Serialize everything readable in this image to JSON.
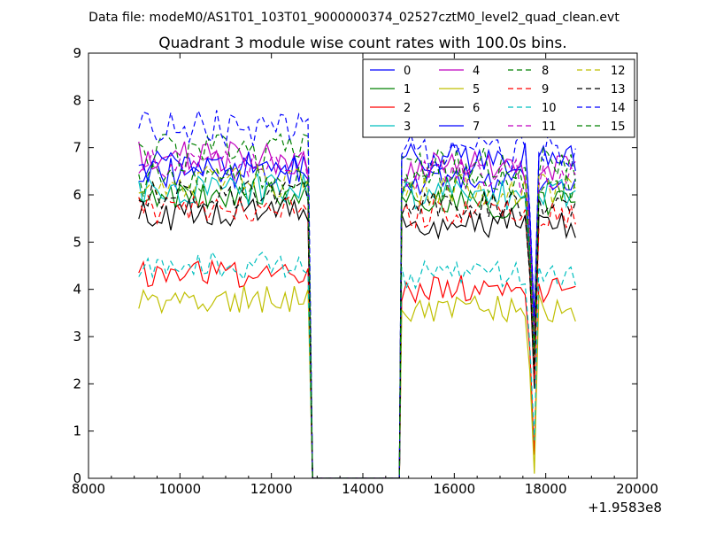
{
  "figure": {
    "suptitle": "Data file: modeM0/AS1T01_103T01_9000000374_02527cztM0_level2_quad_clean.evt"
  },
  "chart_data": {
    "type": "line",
    "title": "Quadrant 3 module wise count rates with 100.0s bins.",
    "xlabel": "",
    "ylabel": "",
    "xlim": [
      8000,
      20000
    ],
    "ylim": [
      0,
      9
    ],
    "x_offset_label": "+1.9583e8",
    "xticks": [
      "8000",
      "10000",
      "12000",
      "14000",
      "16000",
      "18000",
      "20000"
    ],
    "yticks": [
      "0",
      "1",
      "2",
      "3",
      "4",
      "5",
      "6",
      "7",
      "8",
      "9"
    ],
    "grid": false,
    "legend_position": "top-right",
    "legend_columns": 4,
    "segments": [
      {
        "x_start": 9100,
        "x_end": 12800,
        "step": 100
      },
      {
        "x_start": 14850,
        "x_end": 18700,
        "step": 100
      }
    ],
    "gap": {
      "x_start": 12900,
      "x_end": 14800,
      "value": 0
    },
    "series": [
      {
        "name": "0",
        "color": "#0000ff",
        "dash": "solid",
        "mean1": 6.5,
        "mean2": 6.3,
        "amp": 0.35,
        "seed": 11
      },
      {
        "name": "1",
        "color": "#008000",
        "dash": "solid",
        "mean1": 6.0,
        "mean2": 5.8,
        "amp": 0.3,
        "seed": 12
      },
      {
        "name": "2",
        "color": "#ff0000",
        "dash": "solid",
        "mean1": 4.3,
        "mean2": 4.0,
        "amp": 0.3,
        "seed": 13
      },
      {
        "name": "3",
        "color": "#00bfbf",
        "dash": "solid",
        "mean1": 6.1,
        "mean2": 6.0,
        "amp": 0.35,
        "seed": 14
      },
      {
        "name": "4",
        "color": "#bf00bf",
        "dash": "solid",
        "mean1": 6.8,
        "mean2": 6.6,
        "amp": 0.35,
        "seed": 15
      },
      {
        "name": "5",
        "color": "#bfbf00",
        "dash": "solid",
        "mean1": 3.8,
        "mean2": 3.6,
        "amp": 0.3,
        "seed": 16
      },
      {
        "name": "6",
        "color": "#000000",
        "dash": "solid",
        "mean1": 5.6,
        "mean2": 5.4,
        "amp": 0.35,
        "seed": 17
      },
      {
        "name": "7",
        "color": "#0000ff",
        "dash": "solid",
        "mean1": 6.6,
        "mean2": 6.8,
        "amp": 0.35,
        "seed": 18
      },
      {
        "name": "8",
        "color": "#008000",
        "dash": "dashed",
        "mean1": 6.9,
        "mean2": 6.6,
        "amp": 0.4,
        "seed": 19
      },
      {
        "name": "9",
        "color": "#ff0000",
        "dash": "dashed",
        "mean1": 5.7,
        "mean2": 5.6,
        "amp": 0.3,
        "seed": 20
      },
      {
        "name": "10",
        "color": "#00bfbf",
        "dash": "dashed",
        "mean1": 4.5,
        "mean2": 4.3,
        "amp": 0.3,
        "seed": 21
      },
      {
        "name": "11",
        "color": "#bf00bf",
        "dash": "dashed",
        "mean1": 6.6,
        "mean2": 6.4,
        "amp": 0.35,
        "seed": 22
      },
      {
        "name": "12",
        "color": "#bfbf00",
        "dash": "dashed",
        "mean1": 6.3,
        "mean2": 6.1,
        "amp": 0.35,
        "seed": 23
      },
      {
        "name": "13",
        "color": "#000000",
        "dash": "dashed",
        "mean1": 6.0,
        "mean2": 5.8,
        "amp": 0.3,
        "seed": 24
      },
      {
        "name": "14",
        "color": "#0000ff",
        "dash": "dashed",
        "mean1": 7.4,
        "mean2": 6.9,
        "amp": 0.4,
        "seed": 25
      },
      {
        "name": "15",
        "color": "#008000",
        "dash": "dashed",
        "mean1": 6.3,
        "mean2": 6.2,
        "amp": 0.35,
        "seed": 26
      }
    ]
  }
}
